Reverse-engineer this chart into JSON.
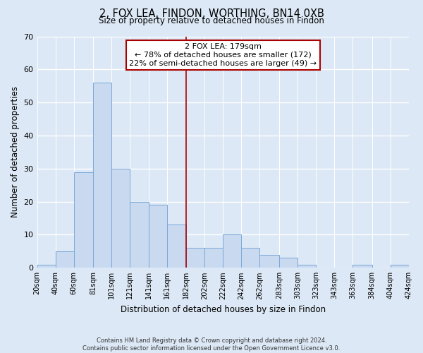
{
  "title": "2, FOX LEA, FINDON, WORTHING, BN14 0XB",
  "subtitle": "Size of property relative to detached houses in Findon",
  "xlabel": "Distribution of detached houses by size in Findon",
  "ylabel": "Number of detached properties",
  "bin_edges": [
    20,
    40,
    60,
    81,
    101,
    121,
    141,
    161,
    182,
    202,
    222,
    242,
    262,
    283,
    303,
    323,
    343,
    363,
    384,
    404,
    424
  ],
  "bar_heights": [
    1,
    5,
    29,
    56,
    30,
    20,
    19,
    13,
    6,
    6,
    10,
    6,
    4,
    3,
    1,
    0,
    0,
    1,
    0,
    1
  ],
  "bar_color": "#c8d9f0",
  "bar_edgecolor": "#7aa8d8",
  "vline_x": 182,
  "vline_color": "#aa0000",
  "annotation_title": "2 FOX LEA: 179sqm",
  "annotation_line1": "← 78% of detached houses are smaller (172)",
  "annotation_line2": "22% of semi-detached houses are larger (49) →",
  "annotation_box_color": "#ffffff",
  "annotation_box_edgecolor": "#aa0000",
  "ylim": [
    0,
    70
  ],
  "yticks": [
    0,
    10,
    20,
    30,
    40,
    50,
    60,
    70
  ],
  "tick_labels": [
    "20sqm",
    "40sqm",
    "60sqm",
    "81sqm",
    "101sqm",
    "121sqm",
    "141sqm",
    "161sqm",
    "182sqm",
    "202sqm",
    "222sqm",
    "242sqm",
    "262sqm",
    "283sqm",
    "303sqm",
    "323sqm",
    "343sqm",
    "363sqm",
    "384sqm",
    "404sqm",
    "424sqm"
  ],
  "footer_line1": "Contains HM Land Registry data © Crown copyright and database right 2024.",
  "footer_line2": "Contains public sector information licensed under the Open Government Licence v3.0.",
  "background_color": "#dce8f5",
  "plot_bg_color": "#dce8f5",
  "grid_color": "#ffffff"
}
